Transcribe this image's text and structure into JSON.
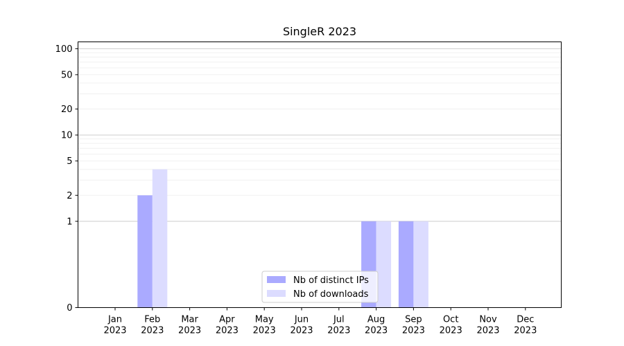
{
  "chart_data": {
    "type": "bar",
    "title": "SingleR 2023",
    "xlabel": "",
    "ylabel": "",
    "y_scale": "symlog",
    "ylim": [
      0,
      120
    ],
    "categories": [
      {
        "month": "Jan",
        "year": "2023"
      },
      {
        "month": "Feb",
        "year": "2023"
      },
      {
        "month": "Mar",
        "year": "2023"
      },
      {
        "month": "Apr",
        "year": "2023"
      },
      {
        "month": "May",
        "year": "2023"
      },
      {
        "month": "Jun",
        "year": "2023"
      },
      {
        "month": "Jul",
        "year": "2023"
      },
      {
        "month": "Aug",
        "year": "2023"
      },
      {
        "month": "Sep",
        "year": "2023"
      },
      {
        "month": "Oct",
        "year": "2023"
      },
      {
        "month": "Nov",
        "year": "2023"
      },
      {
        "month": "Dec",
        "year": "2023"
      }
    ],
    "series": [
      {
        "name": "Nb of distinct IPs",
        "color": "#aaaaff",
        "values": [
          0,
          2,
          0,
          0,
          0,
          0,
          0,
          1,
          1,
          0,
          0,
          0
        ]
      },
      {
        "name": "Nb of downloads",
        "color": "#dcdcff",
        "values": [
          0,
          4,
          0,
          0,
          0,
          0,
          0,
          1,
          1,
          0,
          0,
          0
        ]
      }
    ],
    "y_ticks": [
      {
        "value": 0,
        "label": "0"
      },
      {
        "value": 1,
        "label": "1"
      },
      {
        "value": 2,
        "label": "2"
      },
      {
        "value": 5,
        "label": "5"
      },
      {
        "value": 10,
        "label": "10"
      },
      {
        "value": 20,
        "label": "20"
      },
      {
        "value": 50,
        "label": "50"
      },
      {
        "value": 100,
        "label": "100"
      }
    ],
    "legend_position": "lower center",
    "grid": true
  }
}
